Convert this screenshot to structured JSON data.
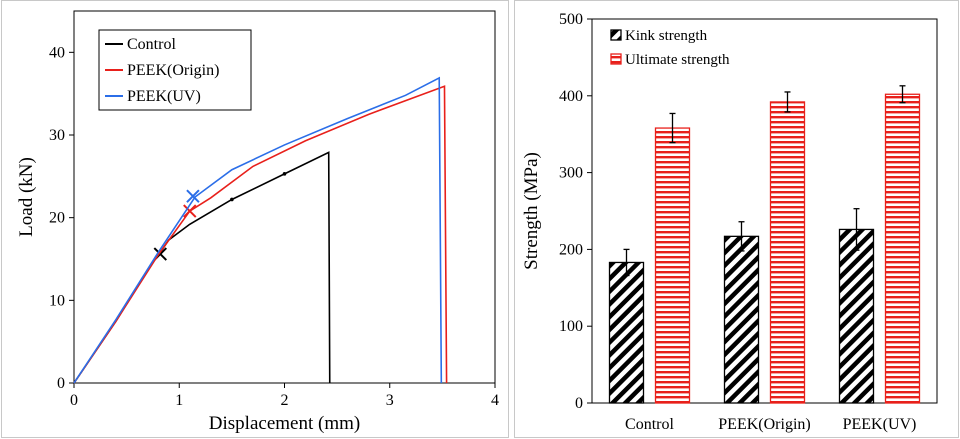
{
  "chart_data": [
    {
      "type": "line",
      "xlabel": "Displacement (mm)",
      "ylabel": "Load (kN)",
      "xlim": [
        0,
        4
      ],
      "ylim": [
        0,
        45
      ],
      "xticks": [
        "0",
        "1",
        "2",
        "3",
        "4"
      ],
      "yticks": [
        "0",
        "10",
        "20",
        "30",
        "40"
      ],
      "grid": false,
      "legend_position": "top-left",
      "series": [
        {
          "name": "Control",
          "color": "#000000",
          "points": [
            [
              0,
              0
            ],
            [
              0.4,
              7.5
            ],
            [
              0.75,
              14.7
            ],
            [
              0.82,
              15.8
            ],
            [
              0.9,
              17.3
            ],
            [
              1.1,
              19.2
            ],
            [
              1.5,
              22.2
            ],
            [
              2.0,
              25.3
            ],
            [
              2.42,
              27.9
            ],
            [
              2.43,
              0
            ]
          ],
          "markers": [
            [
              0.82,
              15.8
            ],
            [
              1.5,
              22.2
            ],
            [
              2.0,
              25.3
            ]
          ],
          "kink": [
            0.82,
            15.6
          ]
        },
        {
          "name": "PEEK(Origin)",
          "color": "#e8201b",
          "points": [
            [
              0,
              0
            ],
            [
              0.4,
              7.5
            ],
            [
              0.8,
              15.5
            ],
            [
              1.1,
              20.8
            ],
            [
              1.3,
              22.4
            ],
            [
              1.7,
              26.2
            ],
            [
              2.2,
              29.3
            ],
            [
              2.8,
              32.5
            ],
            [
              3.52,
              35.9
            ],
            [
              3.54,
              0
            ]
          ],
          "kink": [
            1.1,
            20.8
          ]
        },
        {
          "name": "PEEK(UV)",
          "color": "#2b6ee8",
          "points": [
            [
              0,
              0
            ],
            [
              0.4,
              7.7
            ],
            [
              0.8,
              15.8
            ],
            [
              1.15,
              22.5
            ],
            [
              1.5,
              25.8
            ],
            [
              2.0,
              28.8
            ],
            [
              2.6,
              32.0
            ],
            [
              3.15,
              34.8
            ],
            [
              3.47,
              36.9
            ],
            [
              3.49,
              0
            ]
          ],
          "kink": [
            1.13,
            22.6
          ]
        }
      ]
    },
    {
      "type": "bar",
      "categories": [
        "Control",
        "PEEK(Origin)",
        "PEEK(UV)"
      ],
      "ylabel": "Strength (MPa)",
      "ylim": [
        0,
        500
      ],
      "yticks": [
        "0",
        "100",
        "200",
        "300",
        "400",
        "500"
      ],
      "grid": false,
      "legend_position": "top-left",
      "series": [
        {
          "name": "Kink strength",
          "color": "#000000",
          "pattern": "diagonal-hatch",
          "values": [
            183,
            217,
            226
          ],
          "errors": [
            17,
            19,
            27
          ]
        },
        {
          "name": "Ultimate strength",
          "color": "#e8201b",
          "pattern": "horizontal-stripes",
          "values": [
            358,
            392,
            402
          ],
          "errors": [
            19,
            13,
            11
          ]
        }
      ]
    }
  ]
}
